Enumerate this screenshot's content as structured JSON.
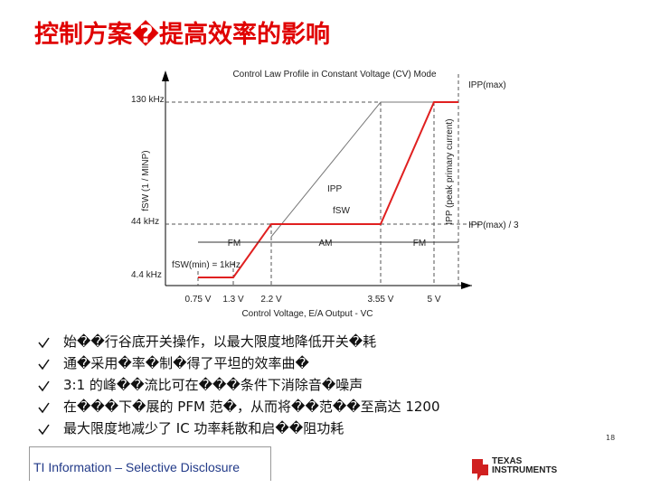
{
  "header": {
    "title": "控制方案�提高效率的影响"
  },
  "figure": {
    "title": "Control Law Profile in Constant Voltage (CV) Mode",
    "y_labels": [
      "130 kHz",
      "44 kHz",
      "4.4 kHz"
    ],
    "y_axis_label": "fSW (1 / MINP)",
    "x_labels": [
      "0.75 V",
      "1.3 V",
      "2.2 V",
      "3.55 V",
      "5 V"
    ],
    "x_axis_label": "Control Voltage, E/A Output - VC",
    "right_axis_label": "IPP (peak primary current)",
    "right_labels": [
      "IPP(max)",
      "IPP(max) / 3"
    ],
    "curve_labels": [
      "IPP",
      "fSW"
    ],
    "regions": [
      "FM",
      "AM",
      "FM"
    ],
    "min_label": "fSW(min) = 1kHz"
  },
  "bullets": [
    "始��行谷底开关操作，以最大限度地降低开关�耗",
    "通�采用�率�制�得了平坦的效率曲�",
    "3:1 的峰��流比可在���条件下消除音�噪声",
    "在���下�展的 PFM 范�，从而将��范��至高达 1200",
    "最大限度地减少了 IC 功率耗散和启��阻功耗"
  ],
  "footer": {
    "text": "TI Information – Selective Disclosure",
    "page": "18",
    "logo": "TEXAS INSTRUMENTS"
  }
}
